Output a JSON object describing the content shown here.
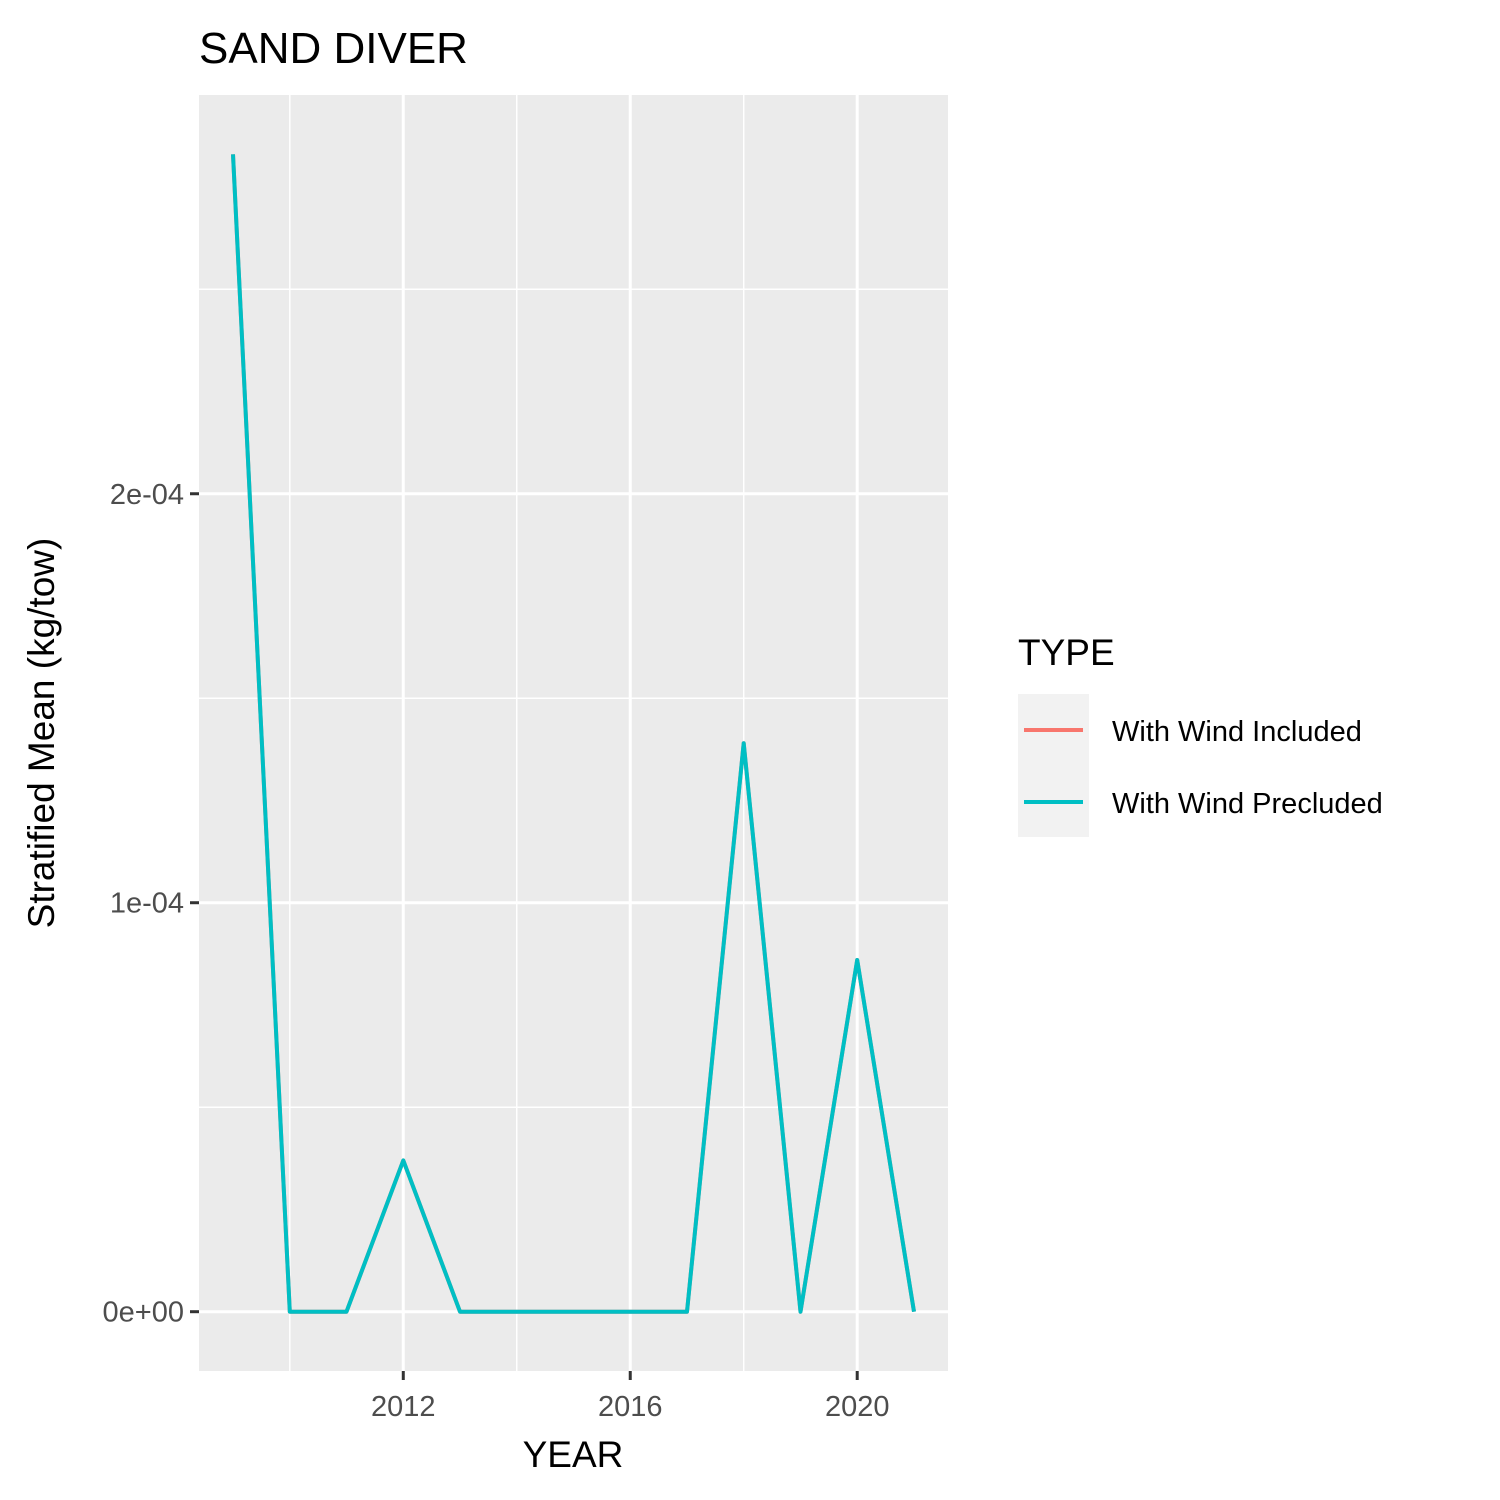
{
  "chart_data": {
    "type": "line",
    "title": "SAND DIVER",
    "xlabel": "YEAR",
    "ylabel": "Stratified Mean (kg/tow)",
    "x": [
      2009,
      2010,
      2011,
      2012,
      2013,
      2014,
      2015,
      2016,
      2017,
      2018,
      2019,
      2020,
      2021
    ],
    "series": [
      {
        "name": "With Wind Included",
        "color": "#F8766D",
        "values": [
          0.000283,
          0,
          0,
          3.7e-05,
          0,
          0,
          0,
          0,
          0,
          0.000139,
          0,
          8.6e-05,
          0
        ]
      },
      {
        "name": "With Wind Precluded",
        "color": "#00BFC4",
        "values": [
          0.000283,
          0,
          0,
          3.7e-05,
          0,
          0,
          0,
          0,
          0,
          0.000139,
          0,
          8.6e-05,
          0
        ]
      }
    ],
    "xlim": [
      2008.4,
      2021.6
    ],
    "ylim": [
      -1.45e-05,
      0.0002975
    ],
    "x_ticks": [
      2012,
      2016,
      2020
    ],
    "x_tick_labels": [
      "2012",
      "2016",
      "2020"
    ],
    "x_minor_ticks": [
      2010,
      2014,
      2018
    ],
    "y_ticks": [
      0,
      0.0001,
      0.0002
    ],
    "y_tick_labels": [
      "0e+00",
      "1e-04",
      "2e-04"
    ],
    "y_minor_ticks": [
      5e-05,
      0.00015,
      0.00025
    ],
    "grid": true,
    "panel_color": "#EBEBEB",
    "legend": {
      "title": "TYPE",
      "position": "right"
    }
  }
}
